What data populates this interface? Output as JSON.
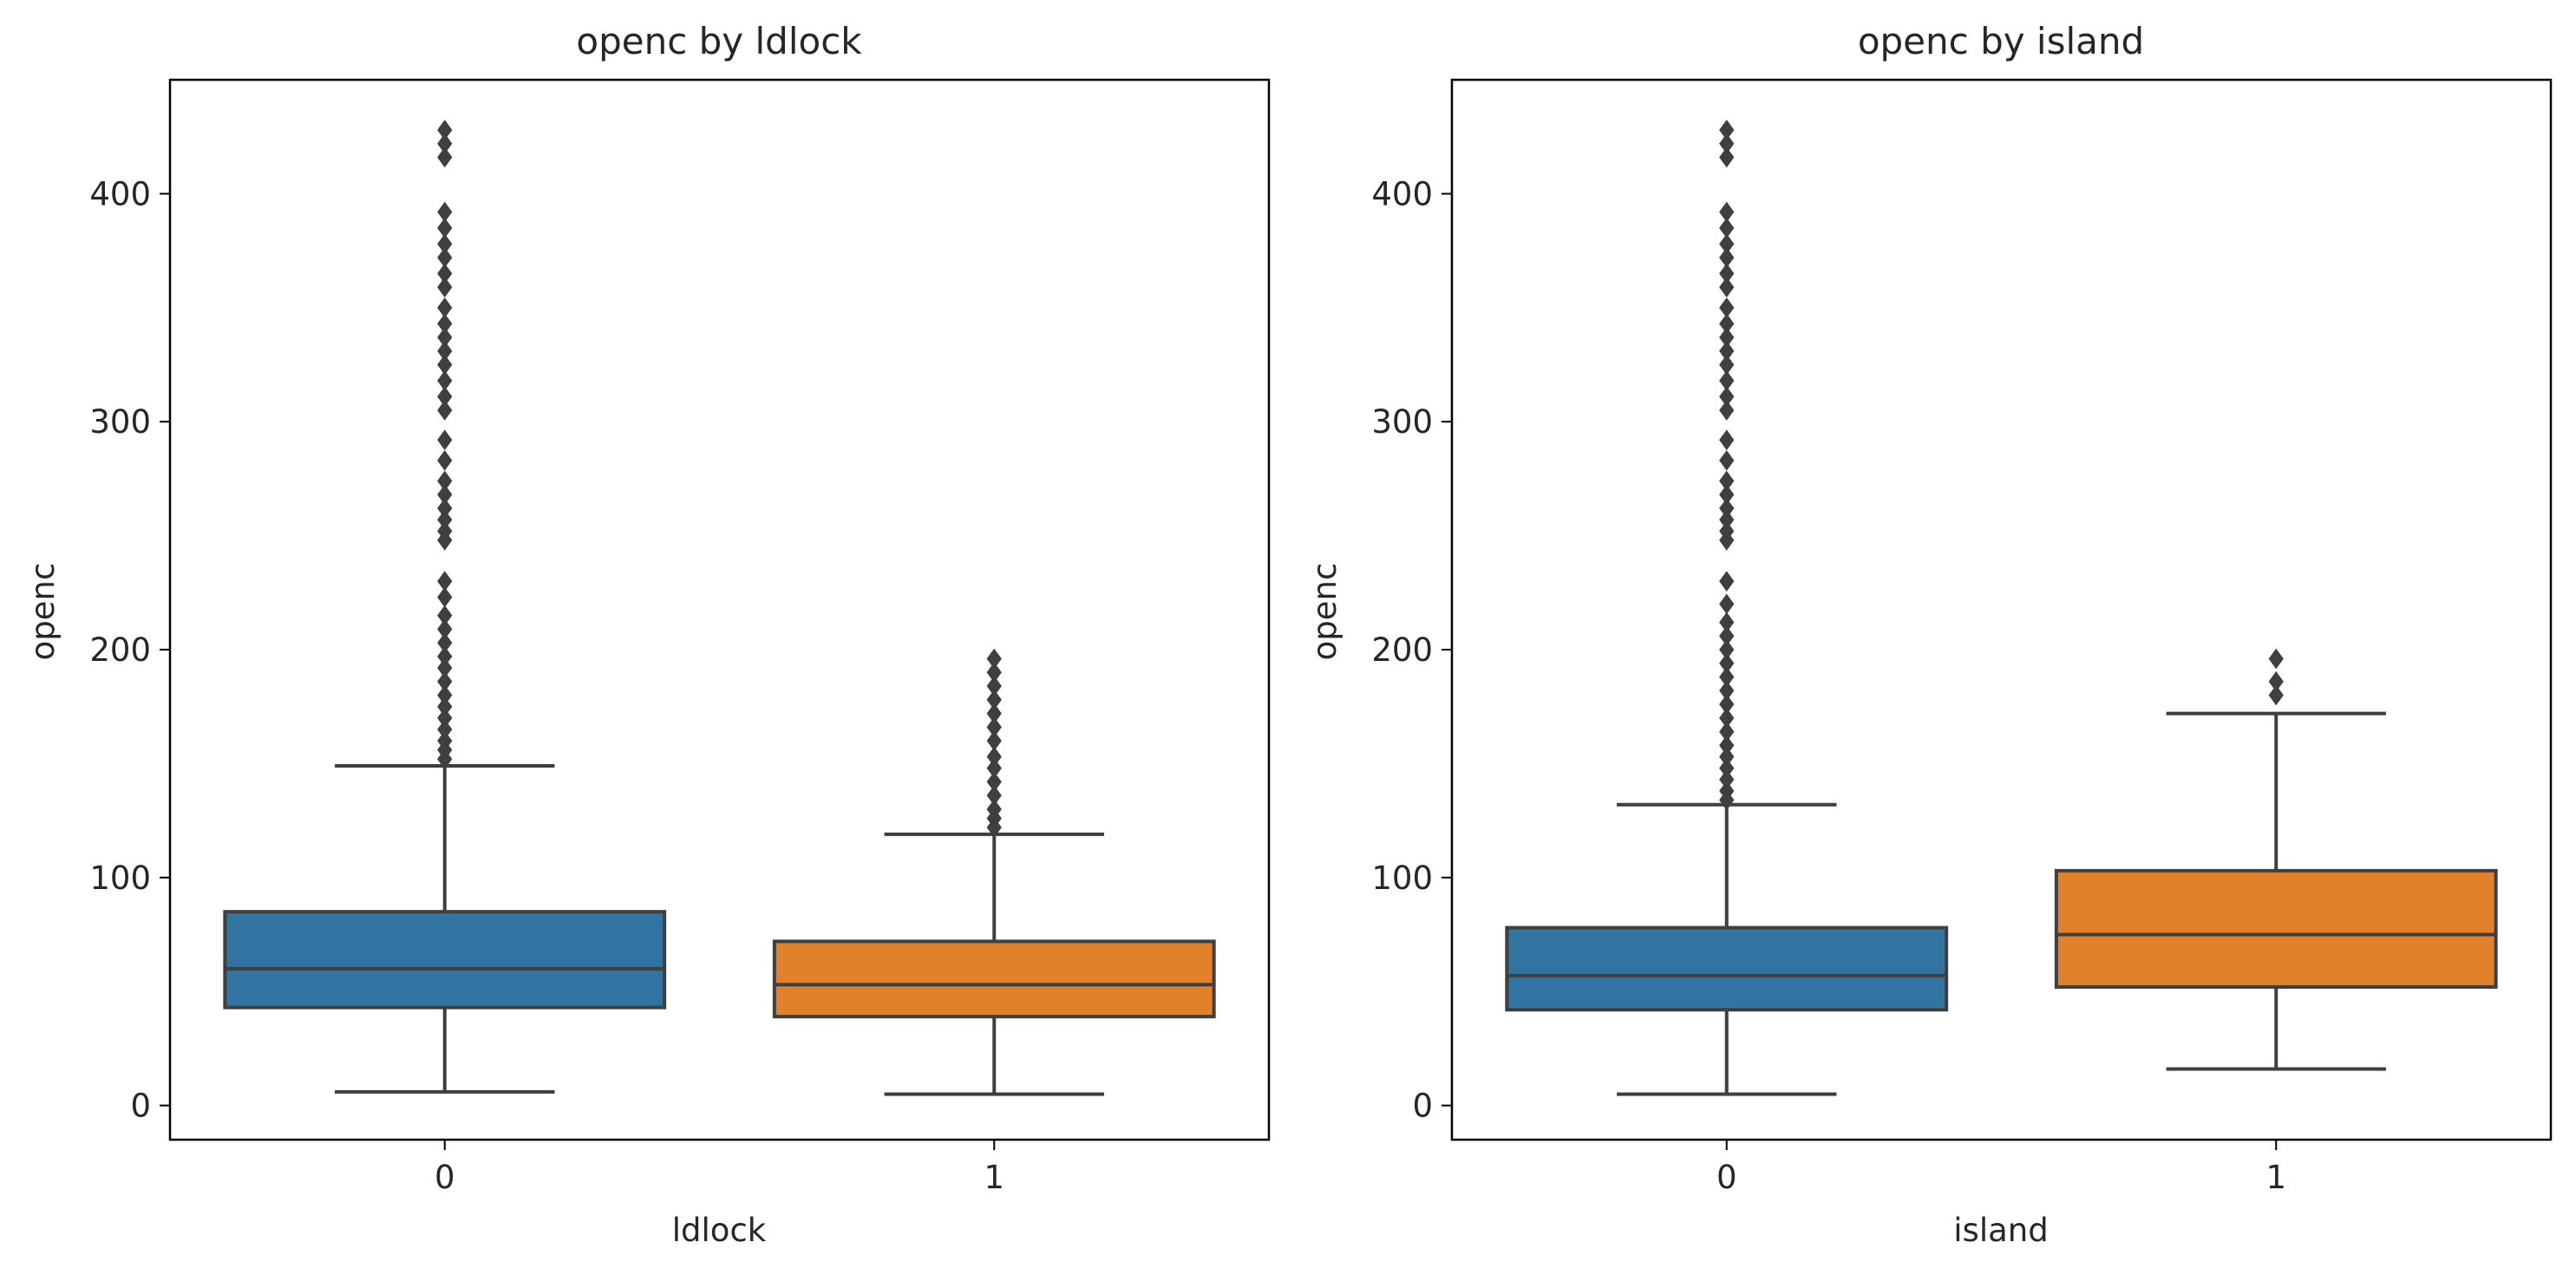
{
  "chart_data": [
    {
      "type": "box",
      "title": "openc by ldlock",
      "xlabel": "ldlock",
      "ylabel": "openc",
      "ylim": [
        -15,
        450
      ],
      "yticks": [
        0,
        100,
        200,
        300,
        400
      ],
      "categories": [
        "0",
        "1"
      ],
      "colors": [
        "#3274a1",
        "#e1812c"
      ],
      "boxes": [
        {
          "category": "0",
          "whisker_low": 6,
          "q1": 43,
          "median": 60,
          "q3": 85,
          "whisker_high": 149,
          "outliers": [
            152,
            156,
            160,
            165,
            170,
            175,
            180,
            186,
            192,
            197,
            203,
            209,
            215,
            223,
            230,
            248,
            252,
            257,
            262,
            268,
            274,
            283,
            292,
            305,
            311,
            318,
            325,
            331,
            337,
            343,
            350,
            359,
            365,
            372,
            378,
            385,
            392,
            416,
            422,
            428
          ]
        },
        {
          "category": "1",
          "whisker_low": 5,
          "q1": 39,
          "median": 53,
          "q3": 72,
          "whisker_high": 119,
          "outliers": [
            122,
            126,
            130,
            136,
            142,
            148,
            153,
            160,
            166,
            172,
            178,
            184,
            190,
            196
          ]
        }
      ]
    },
    {
      "type": "box",
      "title": "openc by island",
      "xlabel": "island",
      "ylabel": "openc",
      "ylim": [
        -15,
        450
      ],
      "yticks": [
        0,
        100,
        200,
        300,
        400
      ],
      "categories": [
        "0",
        "1"
      ],
      "colors": [
        "#3274a1",
        "#e1812c"
      ],
      "boxes": [
        {
          "category": "0",
          "whisker_low": 5,
          "q1": 42,
          "median": 57,
          "q3": 78,
          "whisker_high": 132,
          "outliers": [
            134,
            138,
            143,
            148,
            153,
            158,
            164,
            170,
            176,
            182,
            188,
            194,
            200,
            206,
            212,
            220,
            230,
            248,
            252,
            257,
            262,
            268,
            274,
            283,
            292,
            305,
            311,
            318,
            325,
            331,
            337,
            343,
            350,
            359,
            365,
            372,
            378,
            385,
            392,
            416,
            422,
            428
          ]
        },
        {
          "category": "1",
          "whisker_low": 16,
          "q1": 52,
          "median": 75,
          "q3": 103,
          "whisker_high": 172,
          "outliers": [
            180,
            186,
            196
          ]
        }
      ]
    }
  ]
}
